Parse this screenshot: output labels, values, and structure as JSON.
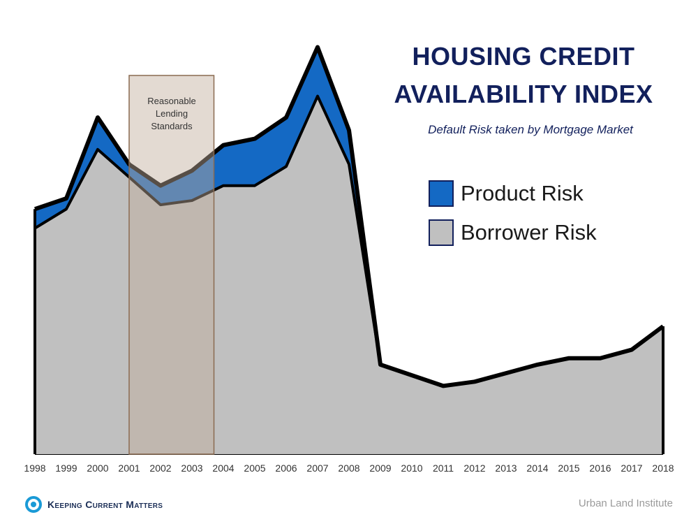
{
  "title": {
    "line1": "HOUSING CREDIT",
    "line2": "AVAILABILITY INDEX"
  },
  "subtitle": "Default Risk taken by Mortgage Market",
  "legend": [
    {
      "label": "Product Risk",
      "color": "#1469c4"
    },
    {
      "label": "Borrower Risk",
      "color": "#c0c0c0"
    }
  ],
  "highlight": {
    "label_lines": [
      "Reasonable",
      "Lending",
      "Standards"
    ],
    "start_year": 2001,
    "end_year": 2003.7,
    "color": "#c2ad9c"
  },
  "footer": {
    "logo_text": "Keeping Current Matters",
    "source": "Urban Land Institute"
  },
  "colors": {
    "product": "#1469c4",
    "borrower": "#c0c0c0",
    "outline": "#000000",
    "title": "#12205c"
  },
  "chart_data": {
    "type": "area",
    "x": [
      1998,
      1999,
      2000,
      2001,
      2002,
      2003,
      2004,
      2005,
      2006,
      2007,
      2008,
      2009,
      2010,
      2011,
      2012,
      2013,
      2014,
      2015,
      2016,
      2017,
      2018
    ],
    "series": [
      {
        "name": "Borrower Risk",
        "values": [
          10.6,
          11.5,
          14.3,
          13.0,
          11.7,
          11.9,
          12.6,
          12.6,
          13.5,
          16.8,
          13.6,
          4.2,
          3.7,
          3.2,
          3.4,
          3.8,
          4.2,
          4.5,
          4.5,
          4.9,
          6.0
        ]
      },
      {
        "name": "Product Risk",
        "values": [
          0.9,
          0.5,
          1.5,
          0.6,
          0.9,
          1.4,
          1.9,
          2.2,
          2.3,
          2.3,
          1.6,
          0,
          0,
          0,
          0,
          0,
          0,
          0,
          0,
          0,
          0
        ]
      }
    ],
    "stacked": true,
    "ylim": [
      0,
      20
    ],
    "grid": false,
    "legend_position": "top-right"
  }
}
